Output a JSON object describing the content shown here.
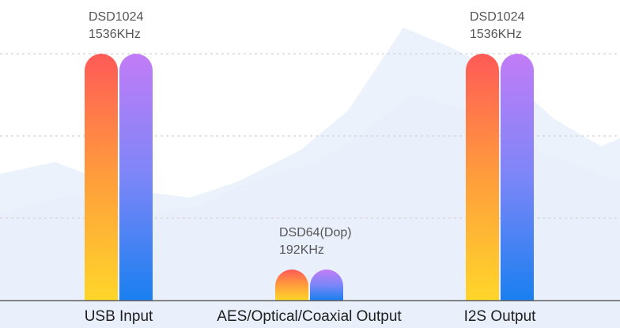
{
  "chart_data": {
    "type": "bar",
    "title": "",
    "xlabel": "",
    "ylabel": "",
    "categories": [
      "USB Input",
      "AES/Optical/Coaxial Output",
      "I2S Output"
    ],
    "series": [
      {
        "values": [
          1536,
          192,
          1536
        ],
        "gradient": [
          "#ff5a57",
          "#ff9d3c",
          "#ffd62a"
        ]
      },
      {
        "values": [
          1536,
          192,
          1536
        ],
        "gradient": [
          "#c27cf7",
          "#7c86f7",
          "#1a7ff0"
        ]
      }
    ],
    "data_labels": [
      [
        "DSD1024",
        "1536KHz"
      ],
      [
        "DSD64(Dop)",
        "192KHz"
      ],
      [
        "DSD1024",
        "1536KHz"
      ]
    ],
    "ylim": [
      0,
      1536
    ],
    "grid": true,
    "grid_color": "#d4d4d4",
    "axis_color": "#666666",
    "background_mountain_color": "#dbe8f7"
  }
}
